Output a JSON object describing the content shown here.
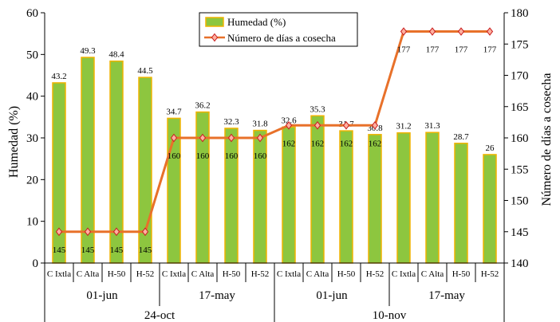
{
  "chart_data": {
    "type": "bar",
    "categories": [
      "C Ixtla",
      "C Alta",
      "H-50",
      "H-52",
      "C Ixtla",
      "C Alta",
      "H-50",
      "H-52",
      "C Ixtla",
      "C Alta",
      "H-50",
      "H-52",
      "C Ixtla",
      "C Alta",
      "H-50",
      "H-52"
    ],
    "sowing_dates": [
      "01-jun",
      "17-may",
      "01-jun",
      "17-may"
    ],
    "harvest_dates": [
      "24-oct",
      "10-nov"
    ],
    "series": [
      {
        "name": "Humedad (%)",
        "kind": "bar",
        "axis": "left",
        "color": "#8dc63f",
        "border": "#f0b400",
        "values": [
          43.2,
          49.3,
          48.4,
          44.5,
          34.7,
          36.2,
          32.3,
          31.8,
          32.6,
          35.3,
          31.7,
          30.8,
          31.2,
          31.3,
          28.7,
          26
        ],
        "labels": [
          "43.2",
          "49.3",
          "48.4",
          "44.5",
          "34.7",
          "36.2",
          "32.3",
          "31.8",
          "32.6",
          "35.3",
          "31.7",
          "30.8",
          "31.2",
          "31.3",
          "28.7",
          "26"
        ]
      },
      {
        "name": "Número de días a cosecha",
        "kind": "line",
        "axis": "right",
        "color": "#e8712a",
        "marker_color": "#c81e1e",
        "values": [
          145,
          145,
          145,
          145,
          160,
          160,
          160,
          160,
          162,
          162,
          162,
          162,
          177,
          177,
          177,
          177
        ],
        "labels": [
          "145",
          "145",
          "145",
          "145",
          "160",
          "160",
          "160",
          "160",
          "162",
          "162",
          "162",
          "162",
          "177",
          "177",
          "177",
          "177"
        ]
      }
    ],
    "ylabel": "Humedad (%)",
    "y2label": "Número de días a cosecha",
    "ylim": [
      0,
      60
    ],
    "y2lim": [
      140,
      180
    ],
    "yticks": [
      "0",
      "10",
      "20",
      "30",
      "40",
      "50",
      "60"
    ],
    "y2ticks": [
      "140",
      "145",
      "150",
      "155",
      "160",
      "165",
      "170",
      "175",
      "180"
    ],
    "grid": false,
    "legend": "top-center"
  }
}
